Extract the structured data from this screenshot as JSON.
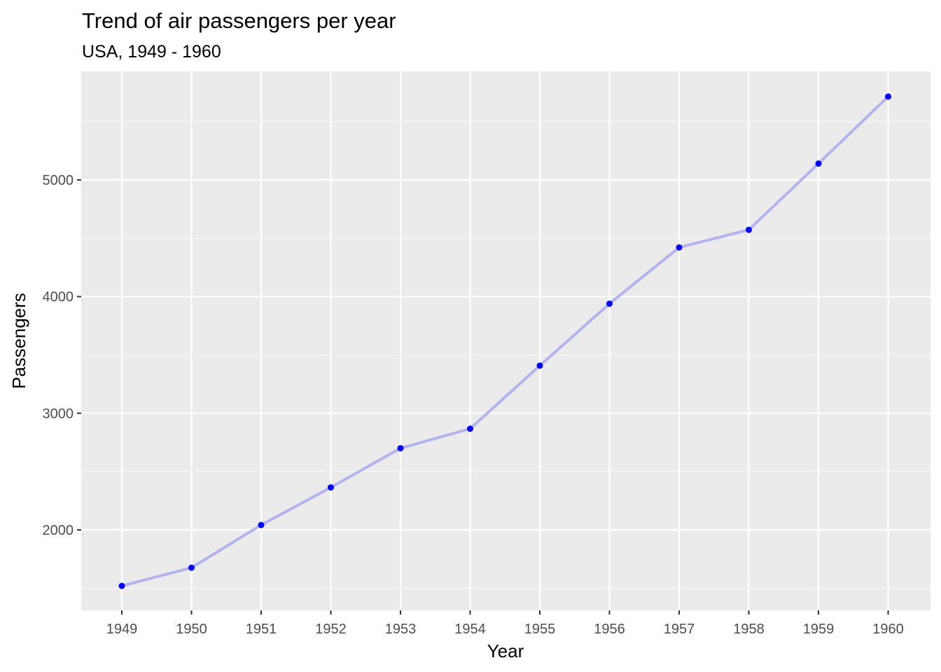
{
  "chart_data": {
    "type": "line",
    "title": "Trend of air passengers per year",
    "subtitle": "USA, 1949 - 1960",
    "xlabel": "Year",
    "ylabel": "Passengers",
    "categories": [
      "1949",
      "1950",
      "1951",
      "1952",
      "1953",
      "1954",
      "1955",
      "1956",
      "1957",
      "1958",
      "1959",
      "1960"
    ],
    "values": [
      1520,
      1676,
      2042,
      2364,
      2700,
      2867,
      3408,
      3939,
      4421,
      4572,
      5140,
      5714
    ],
    "y_ticks": [
      2000,
      3000,
      4000,
      5000
    ],
    "y_tick_labels": [
      "2000",
      "3000",
      "4000",
      "5000"
    ],
    "ylim": [
      1310,
      5930
    ],
    "grid": true,
    "legend": "none",
    "colors": {
      "panel_background": "#EBEBEB",
      "grid_major": "#FFFFFF",
      "grid_minor": "#F7F7F7",
      "line": "#B3B3F0",
      "points": "#0000FF",
      "tick_label": "#4D4D4D"
    }
  }
}
